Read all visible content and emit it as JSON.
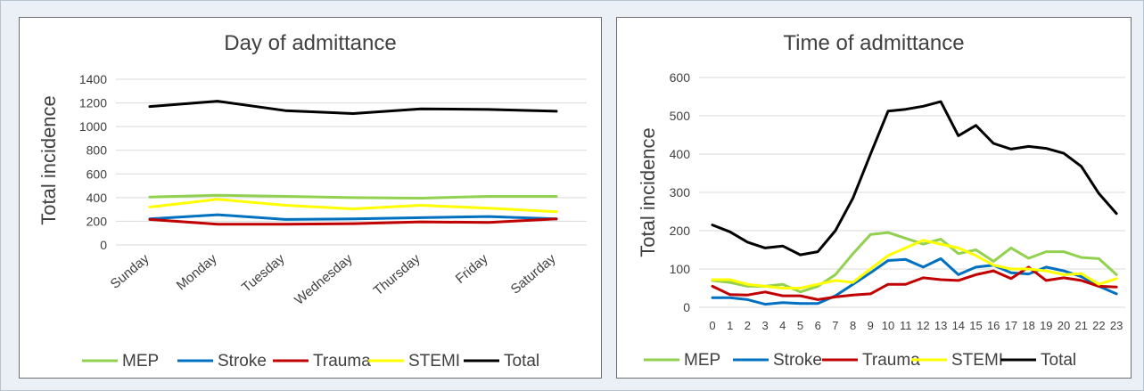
{
  "chart_data": [
    {
      "type": "line",
      "title": "Day of admittance",
      "xlabel": "",
      "ylabel": "Total incidence",
      "ylim": [
        0,
        1400
      ],
      "yticks": [
        0,
        200,
        400,
        600,
        800,
        1000,
        1200,
        1400
      ],
      "grid": true,
      "legend": "bottom",
      "categories": [
        "Sunday",
        "Monday",
        "Tuesday",
        "Wednesday",
        "Thursday",
        "Friday",
        "Saturday"
      ],
      "series": [
        {
          "name": "MEP",
          "color": "#92d050",
          "values": [
            405,
            420,
            410,
            400,
            395,
            410,
            410
          ]
        },
        {
          "name": "Stroke",
          "color": "#0070c0",
          "values": [
            220,
            255,
            215,
            220,
            230,
            240,
            220
          ]
        },
        {
          "name": "Trauma",
          "color": "#c00000",
          "values": [
            215,
            175,
            175,
            180,
            195,
            190,
            220
          ]
        },
        {
          "name": "STEMI",
          "color": "#ffff00",
          "values": [
            320,
            385,
            335,
            305,
            335,
            310,
            280
          ]
        },
        {
          "name": "Total",
          "color": "#000000",
          "values": [
            1170,
            1215,
            1135,
            1110,
            1150,
            1145,
            1130
          ]
        }
      ]
    },
    {
      "type": "line",
      "title": "Time of admittance",
      "xlabel": "",
      "ylabel": "Total incidence",
      "ylim": [
        0,
        600
      ],
      "yticks": [
        0,
        100,
        200,
        300,
        400,
        500,
        600
      ],
      "grid": true,
      "legend": "bottom",
      "categories": [
        "0",
        "1",
        "2",
        "3",
        "4",
        "5",
        "6",
        "7",
        "8",
        "9",
        "10",
        "11",
        "12",
        "13",
        "14",
        "15",
        "16",
        "17",
        "18",
        "19",
        "20",
        "21",
        "22",
        "23"
      ],
      "series": [
        {
          "name": "MEP",
          "color": "#92d050",
          "values": [
            70,
            65,
            55,
            55,
            60,
            40,
            55,
            85,
            140,
            190,
            195,
            180,
            165,
            178,
            140,
            150,
            120,
            155,
            128,
            145,
            145,
            130,
            127,
            85
          ]
        },
        {
          "name": "Stroke",
          "color": "#0070c0",
          "values": [
            25,
            25,
            20,
            8,
            12,
            10,
            10,
            30,
            60,
            90,
            122,
            125,
            105,
            127,
            85,
            105,
            110,
            90,
            87,
            105,
            95,
            80,
            55,
            35
          ]
        },
        {
          "name": "Trauma",
          "color": "#c00000",
          "values": [
            55,
            33,
            32,
            40,
            30,
            30,
            20,
            27,
            32,
            35,
            60,
            60,
            77,
            72,
            70,
            85,
            95,
            75,
            105,
            70,
            77,
            70,
            55,
            53
          ]
        },
        {
          "name": "STEMI",
          "color": "#ffff00",
          "values": [
            72,
            72,
            60,
            55,
            50,
            50,
            60,
            70,
            65,
            100,
            135,
            155,
            175,
            165,
            155,
            135,
            110,
            100,
            100,
            95,
            85,
            88,
            60,
            75
          ]
        },
        {
          "name": "Total",
          "color": "#000000",
          "values": [
            215,
            197,
            170,
            155,
            160,
            137,
            145,
            200,
            285,
            400,
            512,
            517,
            525,
            537,
            448,
            475,
            428,
            413,
            420,
            415,
            402,
            368,
            297,
            245
          ]
        }
      ]
    }
  ]
}
